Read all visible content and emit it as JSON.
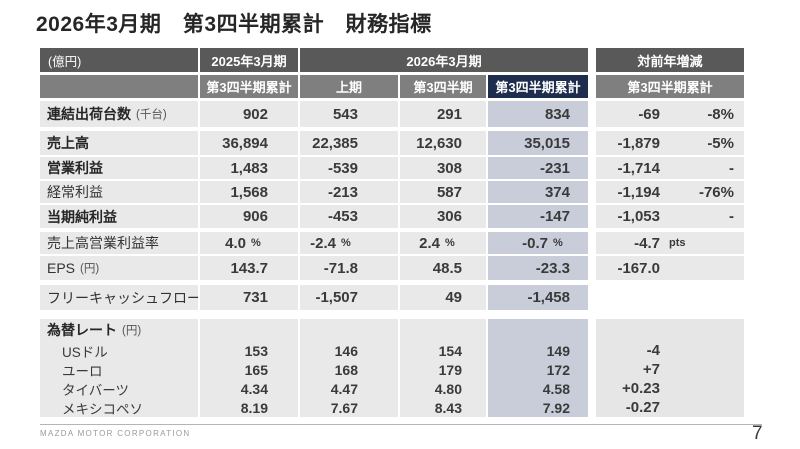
{
  "page_title": "2026年3月期　第3四半期累計　財務指標",
  "header": {
    "unit": "(億円)",
    "fy2025": "2025年3月期",
    "fy2026": "2026年3月期",
    "yoy": "対前年増減",
    "sub_q3cum_2025": "第3四半期累計",
    "sub_h1": "上期",
    "sub_q3": "第3四半期",
    "sub_q3cum_2026": "第3四半期累計",
    "sub_q3cum_yoy": "第3四半期累計"
  },
  "rows": {
    "shipments": {
      "label": "連結出荷台数",
      "unit": "(千台)",
      "fy2025": "902",
      "h1": "543",
      "q3": "291",
      "q3cum": "834",
      "yoy": "-69",
      "yoy_pct": "-8%"
    },
    "revenue": {
      "label": "売上高",
      "fy2025": "36,894",
      "h1": "22,385",
      "q3": "12,630",
      "q3cum": "35,015",
      "yoy": "-1,879",
      "yoy_pct": "-5%"
    },
    "operating_profit": {
      "label": "営業利益",
      "fy2025": "1,483",
      "h1": "-539",
      "q3": "308",
      "q3cum": "-231",
      "yoy": "-1,714",
      "yoy_pct": "-"
    },
    "ordinary_profit": {
      "label": "経常利益",
      "fy2025": "1,568",
      "h1": "-213",
      "q3": "587",
      "q3cum": "374",
      "yoy": "-1,194",
      "yoy_pct": "-76%"
    },
    "net_income": {
      "label": "当期純利益",
      "fy2025": "906",
      "h1": "-453",
      "q3": "306",
      "q3cum": "-147",
      "yoy": "-1,053",
      "yoy_pct": "-"
    },
    "operating_margin": {
      "label": "売上高営業利益率",
      "unit": "%",
      "fy2025": "4.0",
      "h1": "-2.4",
      "q3": "2.4",
      "q3cum": "-0.7",
      "yoy": "-4.7",
      "yoy_unit": "pts"
    },
    "eps": {
      "label": "EPS",
      "unit": "(円)",
      "fy2025": "143.7",
      "h1": "-71.8",
      "q3": "48.5",
      "q3cum": "-23.3",
      "yoy": "-167.0"
    },
    "fcf": {
      "label": "フリーキャッシュフロー",
      "fy2025": "731",
      "h1": "-1,507",
      "q3": "49",
      "q3cum": "-1,458"
    },
    "fx_header": {
      "label": "為替レート",
      "unit": "(円)"
    },
    "usd": {
      "label": "USドル",
      "fy2025": "153",
      "h1": "146",
      "q3": "154",
      "q3cum": "149",
      "yoy": "-4"
    },
    "eur": {
      "label": "ユーロ",
      "fy2025": "165",
      "h1": "168",
      "q3": "179",
      "q3cum": "172",
      "yoy": "+7"
    },
    "thb": {
      "label": "タイバーツ",
      "fy2025": "4.34",
      "h1": "4.47",
      "q3": "4.80",
      "q3cum": "4.58",
      "yoy": "+0.23"
    },
    "mxn": {
      "label": "メキシコペソ",
      "fy2025": "8.19",
      "h1": "7.67",
      "q3": "8.43",
      "q3cum": "7.92",
      "yoy": "-0.27"
    }
  },
  "footer": {
    "company": "MAZDA MOTOR CORPORATION",
    "page_number": "7"
  },
  "colors": {
    "header_dark": "#595959",
    "header_mid": "#7f7f7f",
    "highlight_navy": "#1e2d4d",
    "highlight_column": "#c9cdd9",
    "cell_bg": "#e9e9e9",
    "fx_yoy_bg": "#e6e6e6"
  }
}
